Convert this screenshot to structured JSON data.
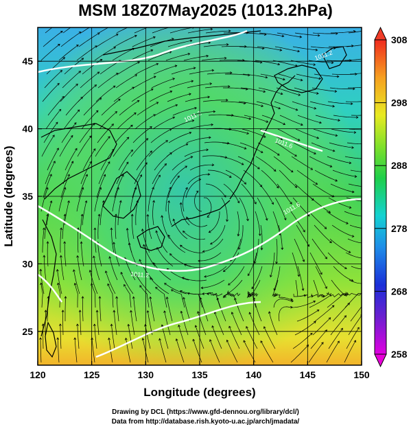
{
  "title": "MSM 18Z07May2025 (1013.2hPa)",
  "axes": {
    "xlabel": "Longitude (degrees)",
    "ylabel": "Latitude  (degrees)",
    "xlim": [
      120,
      150
    ],
    "ylim": [
      22.5,
      47.5
    ],
    "xticks": [
      120,
      125,
      130,
      135,
      140,
      145,
      150
    ],
    "yticks": [
      25,
      30,
      35,
      40,
      45
    ],
    "grid_lon": [
      125,
      130,
      135,
      140,
      145
    ],
    "grid_lat": [
      25,
      30,
      35,
      40,
      45
    ]
  },
  "colorbar": {
    "min": 258,
    "max": 308,
    "tick_labels": [
      "308",
      "298",
      "288",
      "278",
      "268",
      "258"
    ],
    "tick_values": [
      308,
      298,
      288,
      278,
      268,
      258
    ]
  },
  "contour_labels": [
    "1011.2",
    "1011.2",
    "1011.6",
    "1011.6",
    "1011.2"
  ],
  "credits": {
    "line1": "Drawing by DCL (https://www.gfd-dennou.org/library/dcl/)",
    "line2": "Data from http://database.rish.kyoto-u.ac.jp/arch/jmadata/"
  },
  "colors": {
    "frame": "#000000",
    "coastline": "#000000",
    "isobar": "#ffffff"
  }
}
